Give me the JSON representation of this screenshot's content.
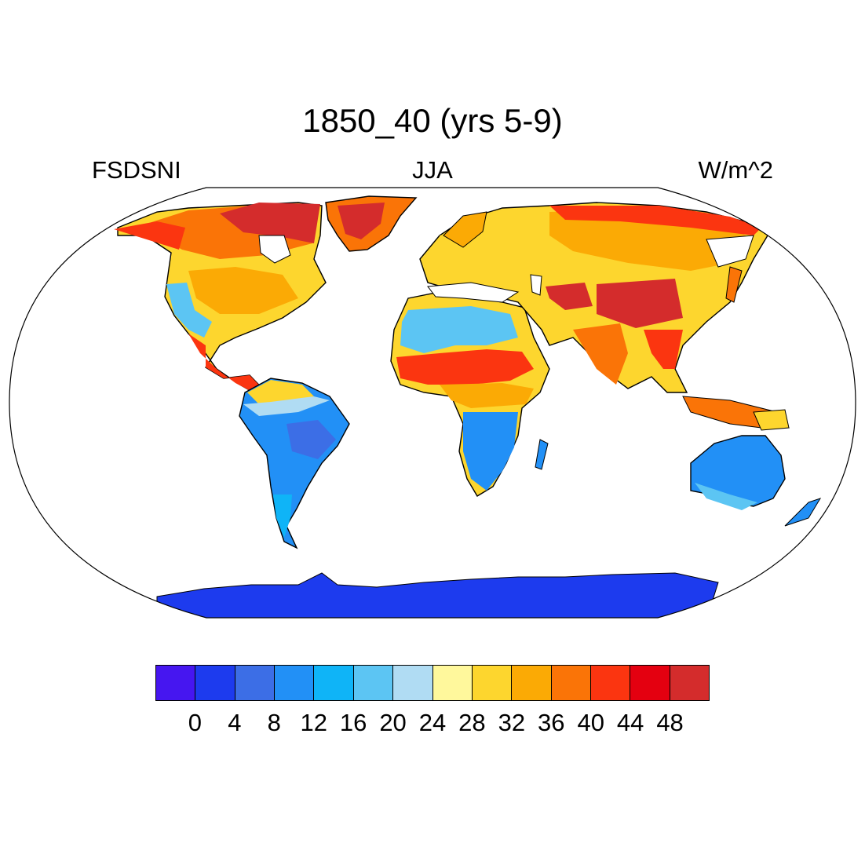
{
  "title": "1850_40 (yrs 5-9)",
  "variable": "FSDSNI",
  "season": "JJA",
  "units": "W/m^2",
  "colorbar": {
    "colors": [
      "#4616f0",
      "#1d3bee",
      "#3c6ee6",
      "#2290f6",
      "#0fb4f7",
      "#5cc5f3",
      "#b0dcf3",
      "#fff89c",
      "#fdd62e",
      "#fbaa05",
      "#fa7407",
      "#fb3510",
      "#e40010",
      "#d42c2c"
    ],
    "labels": [
      "0",
      "4",
      "8",
      "12",
      "16",
      "20",
      "24",
      "28",
      "32",
      "36",
      "40",
      "44",
      "48"
    ]
  },
  "map": {
    "projection": "robinson",
    "land_ocean": "ocean white, land colored",
    "region_values": {
      "greenland": 48,
      "canadian_arctic": 44,
      "alaska": 38,
      "north_america_interior": 32,
      "us_southwest": 20,
      "central_america": 40,
      "northern_south_america": 26,
      "amazon": 8,
      "southern_south_america": 14,
      "sahara": 22,
      "sahel": 40,
      "central_africa": 28,
      "southern_africa": 10,
      "europe": 30,
      "siberia": 38,
      "tibet_mongolia": 48,
      "middle_east": 46,
      "india": 42,
      "southeast_asia": 38,
      "australia": 14,
      "antarctica": 2
    }
  }
}
